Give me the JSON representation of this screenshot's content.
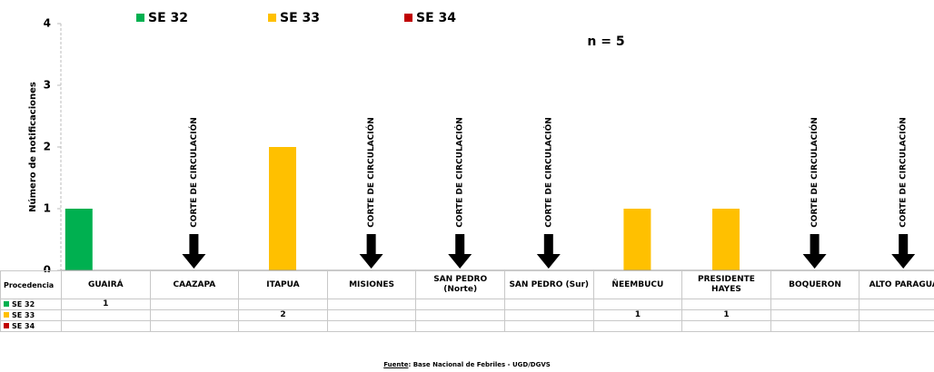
{
  "chart_data": {
    "type": "bar",
    "y_label": "Número de notificaciones",
    "categories": [
      "GUAIRÁ",
      "CAAZAPA",
      "ITAPUA",
      "MISIONES",
      "SAN PEDRO (Norte)",
      "SAN PEDRO (Sur)",
      "ÑEEMBUCU",
      "PRESIDENTE HAYES",
      "BOQUERON",
      "ALTO PARAGUA"
    ],
    "series": [
      {
        "name": "SE 32",
        "color": "#00b050",
        "values": [
          1,
          null,
          null,
          null,
          null,
          null,
          null,
          null,
          null,
          null
        ]
      },
      {
        "name": "SE 33",
        "color": "#ffc000",
        "values": [
          null,
          null,
          2,
          null,
          null,
          null,
          1,
          1,
          null,
          null
        ]
      },
      {
        "name": "SE 34",
        "color": "#c00000",
        "values": [
          null,
          null,
          null,
          null,
          null,
          null,
          null,
          null,
          null,
          null
        ]
      }
    ],
    "annotations": [
      null,
      "CORTE DE CIRCULACIÓN",
      null,
      "CORTE DE CIRCULACIÓN",
      "CORTE DE CIRCULACIÓN",
      "CORTE DE CIRCULACIÓN",
      null,
      null,
      "CORTE DE CIRCULACIÓN",
      "CORTE DE CIRCULACIÓN"
    ],
    "note": "n = 5",
    "table_header": "Procedencia",
    "source_label": "Fuente",
    "source": ": Base Nacional de Febriles - UGD/DGVS",
    "ylim": [
      0,
      4
    ],
    "yticks": [
      0,
      1,
      2,
      3,
      4
    ],
    "legend": "top"
  }
}
